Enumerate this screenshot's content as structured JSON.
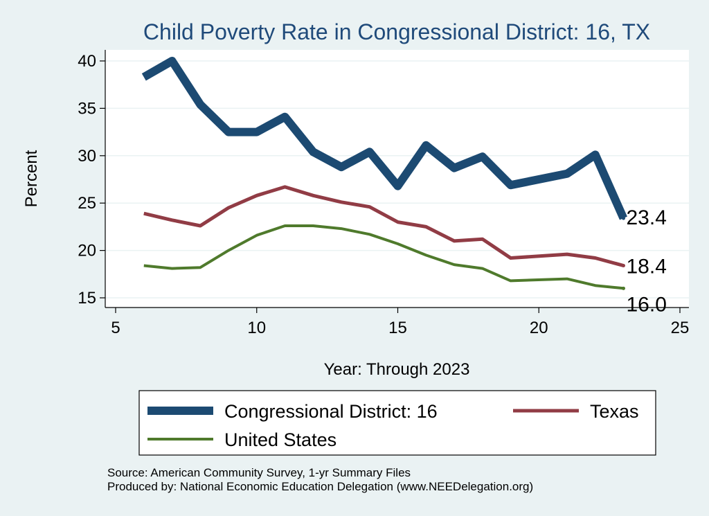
{
  "chart_data": {
    "type": "line",
    "title": "Child Poverty Rate in Congressional District:  16, TX",
    "xlabel": "Year: Through 2023",
    "ylabel": "Percent",
    "xlim": [
      5,
      25
    ],
    "ylim": [
      15,
      40
    ],
    "xticks": [
      5,
      10,
      15,
      20,
      25
    ],
    "yticks": [
      15,
      20,
      25,
      30,
      35,
      40
    ],
    "grid": true,
    "legend_position": "bottom",
    "series": [
      {
        "name": "Congressional District:  16",
        "color": "#1c4a72",
        "x": [
          6,
          7,
          8,
          9,
          10,
          11,
          12,
          13,
          14,
          15,
          16,
          17,
          18,
          19,
          21,
          22,
          23
        ],
        "y": [
          38.3,
          40.0,
          35.4,
          32.5,
          32.5,
          34.1,
          30.4,
          28.8,
          30.4,
          26.8,
          31.1,
          28.7,
          29.9,
          26.9,
          28.1,
          30.1,
          23.4
        ],
        "end_label": "23.4"
      },
      {
        "name": "Texas",
        "color": "#913c45",
        "x": [
          6,
          7,
          8,
          9,
          10,
          11,
          12,
          13,
          14,
          15,
          16,
          17,
          18,
          19,
          21,
          22,
          23
        ],
        "y": [
          23.9,
          23.2,
          22.6,
          24.5,
          25.8,
          26.7,
          25.8,
          25.1,
          24.6,
          23.0,
          22.5,
          21.0,
          21.2,
          19.2,
          19.6,
          19.2,
          18.4
        ],
        "end_label": "18.4"
      },
      {
        "name": "United States",
        "color": "#4f7a2c",
        "x": [
          6,
          7,
          8,
          9,
          10,
          11,
          12,
          13,
          14,
          15,
          16,
          17,
          18,
          19,
          21,
          22,
          23
        ],
        "y": [
          18.4,
          18.1,
          18.2,
          20.0,
          21.6,
          22.6,
          22.6,
          22.3,
          21.7,
          20.7,
          19.5,
          18.5,
          18.1,
          16.8,
          17.0,
          16.3,
          16.0
        ],
        "end_label": "16.0"
      }
    ],
    "notes": [
      "Source: American Community Survey, 1-yr Summary Files",
      "Produced by: National Economic Education Delegation (www.NEEDelegation.org)"
    ]
  }
}
